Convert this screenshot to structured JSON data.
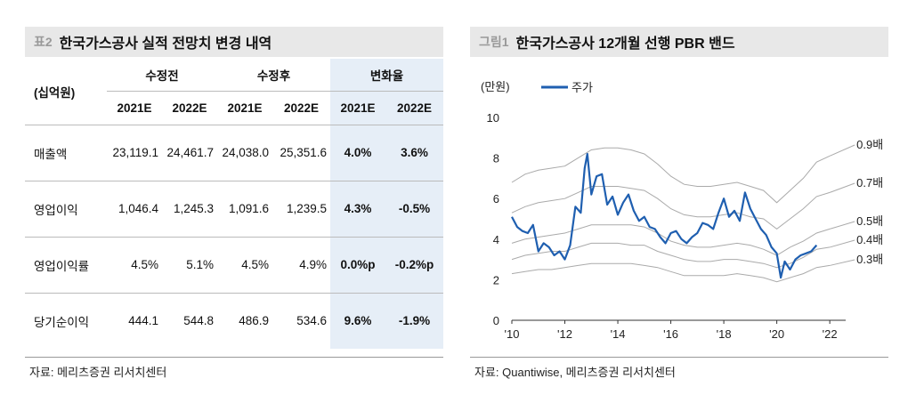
{
  "left": {
    "tag": "표2",
    "title": "한국가스공사 실적 전망치 변경 내역",
    "unit_label": "(십억원)",
    "group_headers": [
      "수정전",
      "수정후",
      "변화율"
    ],
    "years": [
      "2021E",
      "2022E",
      "2021E",
      "2022E",
      "2021E",
      "2022E"
    ],
    "rows": [
      {
        "label": "매출액",
        "values": [
          "23,119.1",
          "24,461.7",
          "24,038.0",
          "25,351.6",
          "4.0%",
          "3.6%"
        ]
      },
      {
        "label": "영업이익",
        "values": [
          "1,046.4",
          "1,245.3",
          "1,091.6",
          "1,239.5",
          "4.3%",
          "-0.5%"
        ]
      },
      {
        "label": "영업이익률",
        "values": [
          "4.5%",
          "5.1%",
          "4.5%",
          "4.9%",
          "0.0%p",
          "-0.2%p"
        ]
      },
      {
        "label": "당기순이익",
        "values": [
          "444.1",
          "544.8",
          "486.9",
          "534.6",
          "9.6%",
          "-1.9%"
        ]
      }
    ],
    "source": "자료: 메리츠증권 리서치센터"
  },
  "right": {
    "tag": "그림1",
    "title": "한국가스공사 12개월 선행 PBR 밴드",
    "source": "자료: Quantiwise, 메리츠증권 리서치센터"
  },
  "colors": {
    "price": "#1f5fb0",
    "band": "#aaaaaa",
    "highlight": "#e6eef7"
  },
  "chart_data": {
    "type": "line",
    "ylabel": "(만원)",
    "ylim": [
      0,
      10
    ],
    "yticks": [
      "0",
      "2",
      "4",
      "6",
      "8",
      "10"
    ],
    "xlim": [
      2010,
      2022.6
    ],
    "xticks": [
      {
        "v": 2010,
        "label": "'10"
      },
      {
        "v": 2012,
        "label": "'12"
      },
      {
        "v": 2014,
        "label": "'14"
      },
      {
        "v": 2016,
        "label": "'16"
      },
      {
        "v": 2018,
        "label": "'18"
      },
      {
        "v": 2020,
        "label": "'20"
      },
      {
        "v": 2022,
        "label": "'22"
      }
    ],
    "legend": "주가",
    "band_x": [
      2010,
      2010.5,
      2011,
      2011.5,
      2012,
      2012.5,
      2013,
      2013.5,
      2014,
      2014.5,
      2015,
      2015.5,
      2016,
      2016.5,
      2017,
      2017.5,
      2018,
      2018.5,
      2019,
      2019.5,
      2020,
      2020.5,
      2021,
      2021.5,
      2022
    ],
    "series": [
      {
        "name": "0.9배",
        "values": [
          6.8,
          7.2,
          7.4,
          7.5,
          7.6,
          8.0,
          8.4,
          8.5,
          8.5,
          8.4,
          8.2,
          7.7,
          7.1,
          6.7,
          6.6,
          6.6,
          6.7,
          6.8,
          6.6,
          6.4,
          5.8,
          6.4,
          7.0,
          7.8,
          8.1
        ]
      },
      {
        "name": "0.7배",
        "values": [
          5.3,
          5.6,
          5.8,
          5.9,
          6.0,
          6.3,
          6.6,
          6.6,
          6.6,
          6.5,
          6.4,
          6.0,
          5.5,
          5.2,
          5.1,
          5.1,
          5.2,
          5.3,
          5.1,
          5.0,
          4.5,
          5.0,
          5.5,
          6.1,
          6.3
        ]
      },
      {
        "name": "0.5배",
        "values": [
          3.8,
          4.0,
          4.1,
          4.2,
          4.3,
          4.5,
          4.7,
          4.7,
          4.7,
          4.7,
          4.6,
          4.3,
          3.9,
          3.7,
          3.6,
          3.6,
          3.7,
          3.8,
          3.7,
          3.5,
          3.2,
          3.6,
          3.9,
          4.3,
          4.5
        ]
      },
      {
        "name": "0.4배",
        "values": [
          3.0,
          3.2,
          3.3,
          3.4,
          3.4,
          3.6,
          3.8,
          3.8,
          3.8,
          3.7,
          3.7,
          3.4,
          3.2,
          3.0,
          2.9,
          2.9,
          3.0,
          3.0,
          2.9,
          2.8,
          2.6,
          2.8,
          3.1,
          3.5,
          3.6
        ]
      },
      {
        "name": "0.3배",
        "values": [
          2.3,
          2.4,
          2.5,
          2.5,
          2.6,
          2.7,
          2.8,
          2.8,
          2.8,
          2.8,
          2.7,
          2.6,
          2.4,
          2.2,
          2.2,
          2.2,
          2.2,
          2.3,
          2.2,
          2.1,
          1.9,
          2.1,
          2.3,
          2.6,
          2.7
        ]
      }
    ],
    "price": {
      "x": [
        2010.0,
        2010.2,
        2010.4,
        2010.6,
        2010.8,
        2011.0,
        2011.2,
        2011.4,
        2011.6,
        2011.8,
        2012.0,
        2012.2,
        2012.4,
        2012.6,
        2012.75,
        2012.85,
        2013.0,
        2013.2,
        2013.4,
        2013.6,
        2013.8,
        2014.0,
        2014.2,
        2014.4,
        2014.6,
        2014.8,
        2015.0,
        2015.2,
        2015.4,
        2015.6,
        2015.8,
        2016.0,
        2016.2,
        2016.4,
        2016.6,
        2016.8,
        2017.0,
        2017.2,
        2017.4,
        2017.6,
        2017.8,
        2018.0,
        2018.2,
        2018.4,
        2018.6,
        2018.8,
        2019.0,
        2019.2,
        2019.4,
        2019.6,
        2019.8,
        2020.0,
        2020.15,
        2020.3,
        2020.5,
        2020.7,
        2020.9,
        2021.1,
        2021.3,
        2021.5
      ],
      "values": [
        5.1,
        4.6,
        4.4,
        4.3,
        4.7,
        3.4,
        3.8,
        3.6,
        3.2,
        3.4,
        3.0,
        3.7,
        5.6,
        5.3,
        7.5,
        8.2,
        6.2,
        7.1,
        7.2,
        5.7,
        6.1,
        5.2,
        5.8,
        6.2,
        5.4,
        4.9,
        5.1,
        4.6,
        4.5,
        4.1,
        3.8,
        4.3,
        4.4,
        4.0,
        3.8,
        4.1,
        4.3,
        4.8,
        4.7,
        4.5,
        5.3,
        6.0,
        5.1,
        5.4,
        4.9,
        6.3,
        5.5,
        5.0,
        4.5,
        4.2,
        3.6,
        3.3,
        2.1,
        2.9,
        2.5,
        3.0,
        3.2,
        3.3,
        3.4,
        3.7
      ]
    }
  }
}
